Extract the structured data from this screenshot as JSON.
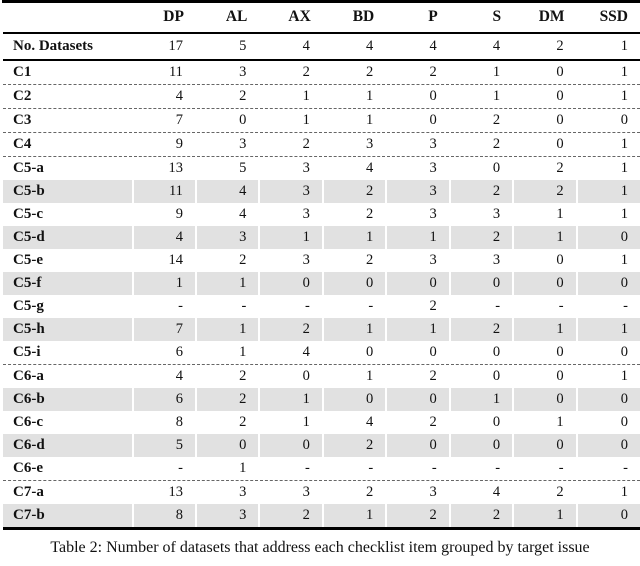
{
  "table": {
    "column_headers": [
      "DP",
      "AL",
      "AX",
      "BD",
      "P",
      "S",
      "DM",
      "SSD"
    ],
    "summary_row": {
      "label": "No. Datasets",
      "values": [
        "17",
        "5",
        "4",
        "4",
        "4",
        "4",
        "2",
        "1"
      ]
    },
    "rows": [
      {
        "label": "C1",
        "values": [
          "11",
          "3",
          "2",
          "2",
          "2",
          "1",
          "0",
          "1"
        ],
        "shaded": false,
        "dashed_before": false
      },
      {
        "label": "C2",
        "values": [
          "4",
          "2",
          "1",
          "1",
          "0",
          "1",
          "0",
          "1"
        ],
        "shaded": false,
        "dashed_before": true
      },
      {
        "label": "C3",
        "values": [
          "7",
          "0",
          "1",
          "1",
          "0",
          "2",
          "0",
          "0"
        ],
        "shaded": false,
        "dashed_before": true
      },
      {
        "label": "C4",
        "values": [
          "9",
          "3",
          "2",
          "3",
          "3",
          "2",
          "0",
          "1"
        ],
        "shaded": false,
        "dashed_before": true
      },
      {
        "label": "C5-a",
        "values": [
          "13",
          "5",
          "3",
          "4",
          "3",
          "0",
          "2",
          "1"
        ],
        "shaded": false,
        "dashed_before": true
      },
      {
        "label": "C5-b",
        "values": [
          "11",
          "4",
          "3",
          "2",
          "3",
          "2",
          "2",
          "1"
        ],
        "shaded": true,
        "dashed_before": false
      },
      {
        "label": "C5-c",
        "values": [
          "9",
          "4",
          "3",
          "2",
          "3",
          "3",
          "1",
          "1"
        ],
        "shaded": false,
        "dashed_before": false
      },
      {
        "label": "C5-d",
        "values": [
          "4",
          "3",
          "1",
          "1",
          "1",
          "2",
          "1",
          "0"
        ],
        "shaded": true,
        "dashed_before": false
      },
      {
        "label": "C5-e",
        "values": [
          "14",
          "2",
          "3",
          "2",
          "3",
          "3",
          "0",
          "1"
        ],
        "shaded": false,
        "dashed_before": false
      },
      {
        "label": "C5-f",
        "values": [
          "1",
          "1",
          "0",
          "0",
          "0",
          "0",
          "0",
          "0"
        ],
        "shaded": true,
        "dashed_before": false
      },
      {
        "label": "C5-g",
        "values": [
          "-",
          "-",
          "-",
          "-",
          "2",
          "-",
          "-",
          "-"
        ],
        "shaded": false,
        "dashed_before": false
      },
      {
        "label": "C5-h",
        "values": [
          "7",
          "1",
          "2",
          "1",
          "1",
          "2",
          "1",
          "1"
        ],
        "shaded": true,
        "dashed_before": false
      },
      {
        "label": "C5-i",
        "values": [
          "6",
          "1",
          "4",
          "0",
          "0",
          "0",
          "0",
          "0"
        ],
        "shaded": false,
        "dashed_before": false
      },
      {
        "label": "C6-a",
        "values": [
          "4",
          "2",
          "0",
          "1",
          "2",
          "0",
          "0",
          "1"
        ],
        "shaded": false,
        "dashed_before": true
      },
      {
        "label": "C6-b",
        "values": [
          "6",
          "2",
          "1",
          "0",
          "0",
          "1",
          "0",
          "0"
        ],
        "shaded": true,
        "dashed_before": false
      },
      {
        "label": "C6-c",
        "values": [
          "8",
          "2",
          "1",
          "4",
          "2",
          "0",
          "1",
          "0"
        ],
        "shaded": false,
        "dashed_before": false
      },
      {
        "label": "C6-d",
        "values": [
          "5",
          "0",
          "0",
          "2",
          "0",
          "0",
          "0",
          "0"
        ],
        "shaded": true,
        "dashed_before": false
      },
      {
        "label": "C6-e",
        "values": [
          "-",
          "1",
          "-",
          "-",
          "-",
          "-",
          "-",
          "-"
        ],
        "shaded": false,
        "dashed_before": false
      },
      {
        "label": "C7-a",
        "values": [
          "13",
          "3",
          "3",
          "2",
          "3",
          "4",
          "2",
          "1"
        ],
        "shaded": false,
        "dashed_before": true
      },
      {
        "label": "C7-b",
        "values": [
          "8",
          "3",
          "2",
          "1",
          "2",
          "2",
          "1",
          "0"
        ],
        "shaded": true,
        "dashed_before": false
      }
    ]
  },
  "caption": "Table 2: Number of datasets that address each checklist item grouped by target issue",
  "colors": {
    "shaded_row": "#e1e1e1",
    "rule": "#000000",
    "dashed_rule": "#666666",
    "text": "#111111"
  }
}
